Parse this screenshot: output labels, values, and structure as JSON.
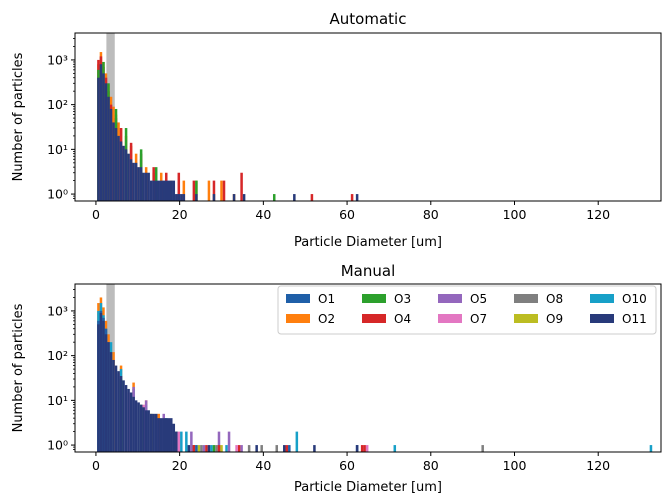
{
  "figure": {
    "colors": {
      "O1": "#1f5fa8",
      "O2": "#ff7f0e",
      "O3": "#2ca02c",
      "O4": "#d62728",
      "O5": "#9467bd",
      "O7": "#e377c2",
      "O8": "#7f7f7f",
      "O9": "#bcbd22",
      "O10": "#17a0c8",
      "O11": "#283a7a",
      "highlight_band": "#b0b0b0"
    }
  },
  "chart_data": [
    {
      "type": "histogram",
      "style": "step (unfilled outlines)",
      "title": "Automatic",
      "xlabel": "Particle Diameter [um]",
      "ylabel": "Number of particles",
      "xlim": [
        -5,
        135
      ],
      "ylim": [
        0.7,
        4000
      ],
      "yscale": "log",
      "xticks": [
        "0",
        "20",
        "40",
        "60",
        "80",
        "100",
        "120"
      ],
      "yticks": [
        "10⁰",
        "10¹",
        "10²",
        "10³"
      ],
      "highlight_band_x": [
        2.5,
        4.5
      ],
      "grid": false,
      "series": [
        {
          "key": "O2",
          "x": [
            0.6,
            1.2,
            1.8,
            2.4,
            3.0,
            3.6,
            4.2,
            4.8,
            5.4,
            6.0,
            7.2,
            8.4,
            9.6,
            10.8,
            12.0,
            13.8,
            15.6,
            18.0,
            21.0,
            24.0,
            27.0,
            30.0,
            33.0
          ],
          "counts": [
            800,
            1500,
            900,
            500,
            280,
            150,
            90,
            60,
            40,
            30,
            20,
            12,
            8,
            6,
            4,
            3,
            3,
            2,
            2,
            2,
            2,
            2,
            1
          ]
        },
        {
          "key": "O4",
          "x": [
            0.6,
            1.2,
            1.8,
            2.4,
            3.0,
            3.6,
            4.8,
            6.0,
            8.4,
            10.8,
            13.8,
            16.8,
            19.8,
            23.4,
            28.2,
            30.6,
            34.8,
            51.6,
            61.2
          ],
          "counts": [
            1000,
            1200,
            700,
            400,
            200,
            100,
            50,
            30,
            14,
            8,
            4,
            3,
            3,
            2,
            2,
            2,
            3,
            1,
            1
          ]
        },
        {
          "key": "O3",
          "x": [
            0.6,
            1.8,
            3.0,
            4.8,
            7.2,
            10.8,
            14.4,
            24.0,
            42.6
          ],
          "counts": [
            600,
            900,
            300,
            80,
            30,
            10,
            4,
            2,
            1
          ]
        },
        {
          "key": "O11",
          "x": [
            0.6,
            1.2,
            1.8,
            2.4,
            3.0,
            3.6,
            4.2,
            4.8,
            5.4,
            6.0,
            6.6,
            7.2,
            7.8,
            8.4,
            9.0,
            9.6,
            10.2,
            10.8,
            11.4,
            12.0,
            12.6,
            13.2,
            13.8,
            14.4,
            15.0,
            15.6,
            16.2,
            16.8,
            17.4,
            18.0,
            18.6,
            19.2,
            19.8,
            20.4,
            21.0,
            24.0,
            28.2,
            33.0,
            35.4,
            47.4,
            62.4
          ],
          "counts": [
            400,
            800,
            500,
            300,
            150,
            80,
            40,
            30,
            20,
            15,
            12,
            10,
            8,
            6,
            5,
            5,
            4,
            4,
            3,
            3,
            3,
            2,
            2,
            2,
            2,
            2,
            2,
            2,
            2,
            2,
            2,
            1,
            1,
            1,
            1,
            1,
            1,
            1,
            1,
            1,
            1
          ]
        }
      ]
    },
    {
      "type": "histogram",
      "style": "filled bars",
      "title": "Manual",
      "xlabel": "Particle Diameter [um]",
      "ylabel": "Number of particles",
      "xlim": [
        -5,
        135
      ],
      "ylim": [
        0.7,
        4000
      ],
      "yscale": "log",
      "xticks": [
        "0",
        "20",
        "40",
        "60",
        "80",
        "100",
        "120"
      ],
      "yticks": [
        "10⁰",
        "10¹",
        "10²",
        "10³"
      ],
      "highlight_band_x": [
        2.5,
        4.5
      ],
      "grid": false,
      "legend": {
        "placement": "top-right",
        "columns": 5,
        "entries": [
          {
            "label": "O1",
            "key": "O1"
          },
          {
            "label": "O2",
            "key": "O2"
          },
          {
            "label": "O3",
            "key": "O3"
          },
          {
            "label": "O4",
            "key": "O4"
          },
          {
            "label": "O5",
            "key": "O5"
          },
          {
            "label": "O7",
            "key": "O7"
          },
          {
            "label": "O8",
            "key": "O8"
          },
          {
            "label": "O9",
            "key": "O9"
          },
          {
            "label": "O10",
            "key": "O10"
          },
          {
            "label": "O11",
            "key": "O11"
          }
        ]
      },
      "series": [
        {
          "key": "O2",
          "x": [
            0.6,
            1.2,
            1.8,
            2.4,
            3.0,
            4.2,
            6.0,
            9.0,
            12.0,
            15.0
          ],
          "counts": [
            1500,
            2000,
            1200,
            600,
            300,
            120,
            60,
            25,
            10,
            5
          ]
        },
        {
          "key": "O10",
          "x": [
            0.6,
            1.2,
            1.8,
            2.4,
            3.6,
            6.0,
            9.0,
            12.0,
            16.8,
            19.2,
            20.4,
            21.6,
            27.6,
            31.2,
            48.0,
            71.4,
            132.6
          ],
          "counts": [
            1000,
            1500,
            800,
            400,
            200,
            50,
            18,
            8,
            4,
            2,
            2,
            2,
            1,
            1,
            2,
            1,
            1
          ]
        },
        {
          "key": "O5",
          "x": [
            5.4,
            9.0,
            12.0,
            16.2,
            22.8,
            25.8,
            29.4,
            31.8,
            34.8
          ],
          "counts": [
            40,
            20,
            10,
            5,
            2,
            1,
            2,
            2,
            1
          ]
        },
        {
          "key": "O3",
          "x": [
            6.0,
            10.8,
            19.2,
            23.4,
            28.2
          ],
          "counts": [
            30,
            8,
            2,
            1,
            1
          ]
        },
        {
          "key": "O9",
          "x": [
            13.2,
            17.4,
            24.6,
            30.0
          ],
          "counts": [
            5,
            3,
            1,
            1
          ]
        },
        {
          "key": "O8",
          "x": [
            25.2,
            28.8,
            36.6,
            39.6,
            43.2,
            92.4
          ],
          "counts": [
            1,
            1,
            1,
            1,
            1,
            1
          ]
        },
        {
          "key": "O4",
          "x": [
            23.4,
            26.4,
            29.4,
            34.2,
            45.6,
            63.6,
            64.2
          ],
          "counts": [
            1,
            1,
            1,
            1,
            1,
            1,
            1
          ]
        },
        {
          "key": "O7",
          "x": [
            7.8,
            11.4,
            14.4,
            19.8,
            33.6,
            64.8
          ],
          "counts": [
            15,
            8,
            4,
            2,
            1,
            1
          ]
        },
        {
          "key": "O1",
          "x": [
            0.6,
            1.2,
            1.8,
            2.4,
            3.0,
            24.0,
            46.2,
            62.4
          ],
          "counts": [
            600,
            1000,
            700,
            400,
            200,
            1,
            1,
            1
          ]
        },
        {
          "key": "O11",
          "x": [
            0.6,
            1.2,
            1.8,
            2.4,
            3.0,
            3.6,
            4.2,
            4.8,
            5.4,
            6.0,
            6.6,
            7.2,
            7.8,
            8.4,
            9.0,
            9.6,
            10.2,
            10.8,
            11.4,
            12.0,
            12.6,
            13.2,
            13.8,
            14.4,
            15.0,
            15.6,
            16.2,
            16.8,
            17.4,
            18.0,
            18.6,
            19.2,
            22.2,
            27.0,
            38.4,
            45.0,
            52.2,
            62.4
          ],
          "counts": [
            500,
            900,
            600,
            300,
            200,
            120,
            80,
            60,
            45,
            35,
            28,
            22,
            18,
            15,
            12,
            10,
            9,
            8,
            7,
            6,
            6,
            5,
            5,
            5,
            4,
            4,
            4,
            4,
            4,
            4,
            3,
            2,
            1,
            1,
            1,
            1,
            1,
            1
          ]
        }
      ]
    }
  ]
}
